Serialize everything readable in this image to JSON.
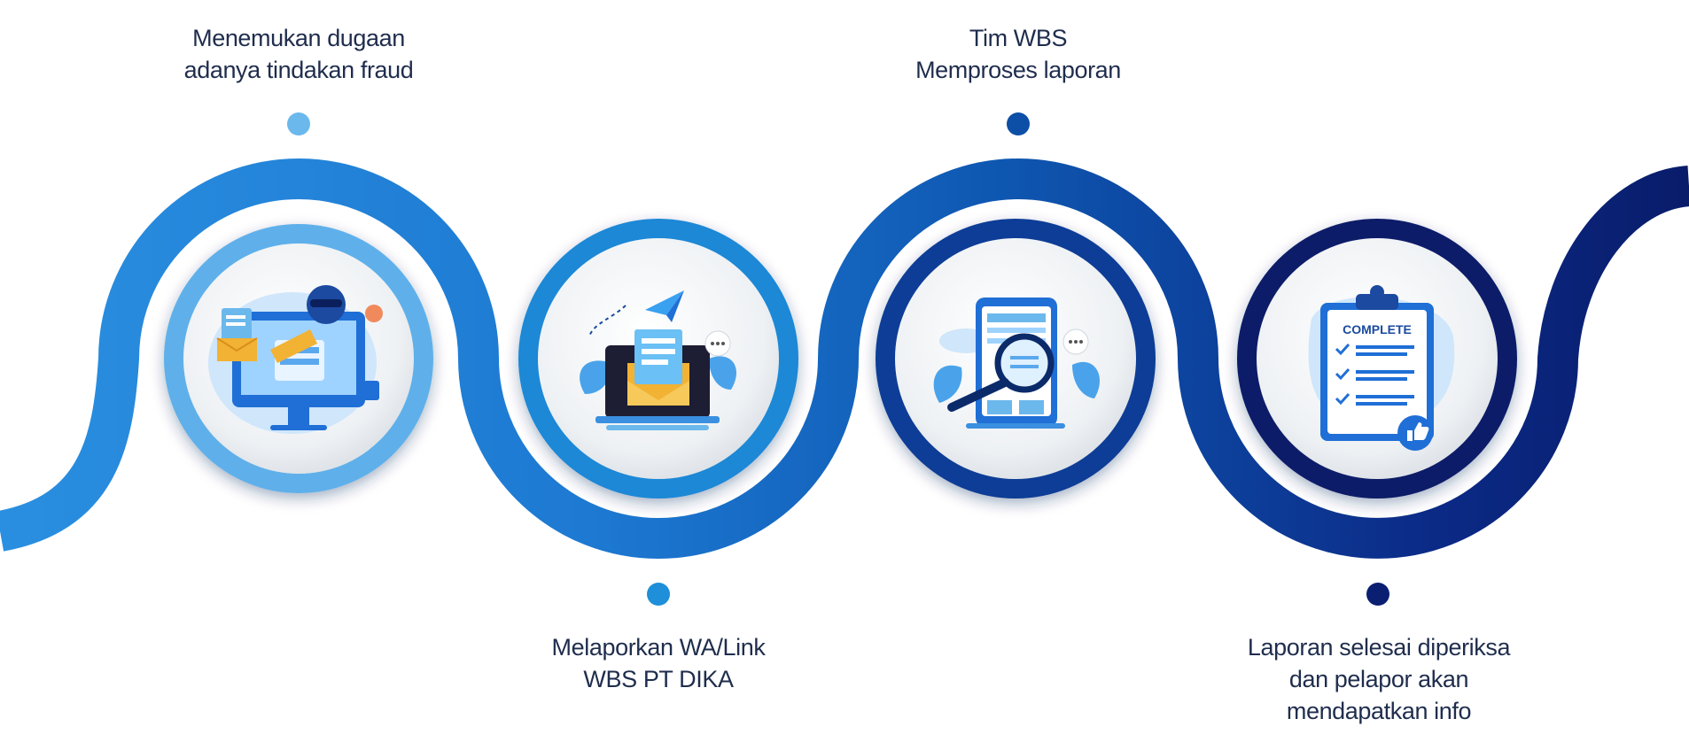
{
  "steps": [
    {
      "lines": [
        "Menemukan dugaan",
        "adanya tindakan fraud"
      ],
      "icon": "fraud-hacker-icon",
      "dot_color": "#6bb8ec"
    },
    {
      "lines": [
        "Melaporkan WA/Link",
        "WBS PT DIKA"
      ],
      "icon": "email-report-icon",
      "dot_color": "#1e8fd8"
    },
    {
      "lines": [
        "Tim WBS",
        "Memproses laporan"
      ],
      "icon": "phone-magnifier-icon",
      "dot_color": "#0d4fa6"
    },
    {
      "lines": [
        "Laporan selesai diperiksa",
        "dan pelapor akan",
        "mendapatkan info"
      ],
      "icon": "complete-clipboard-icon",
      "dot_color": "#0b1f72"
    }
  ],
  "badge": {
    "complete": "COMPLETE"
  },
  "colors": {
    "light": "#6bb8ec",
    "mid": "#1e8fd8",
    "dark": "#0d4fa6",
    "navy": "#0b1f72",
    "text": "#1f2d4d"
  }
}
